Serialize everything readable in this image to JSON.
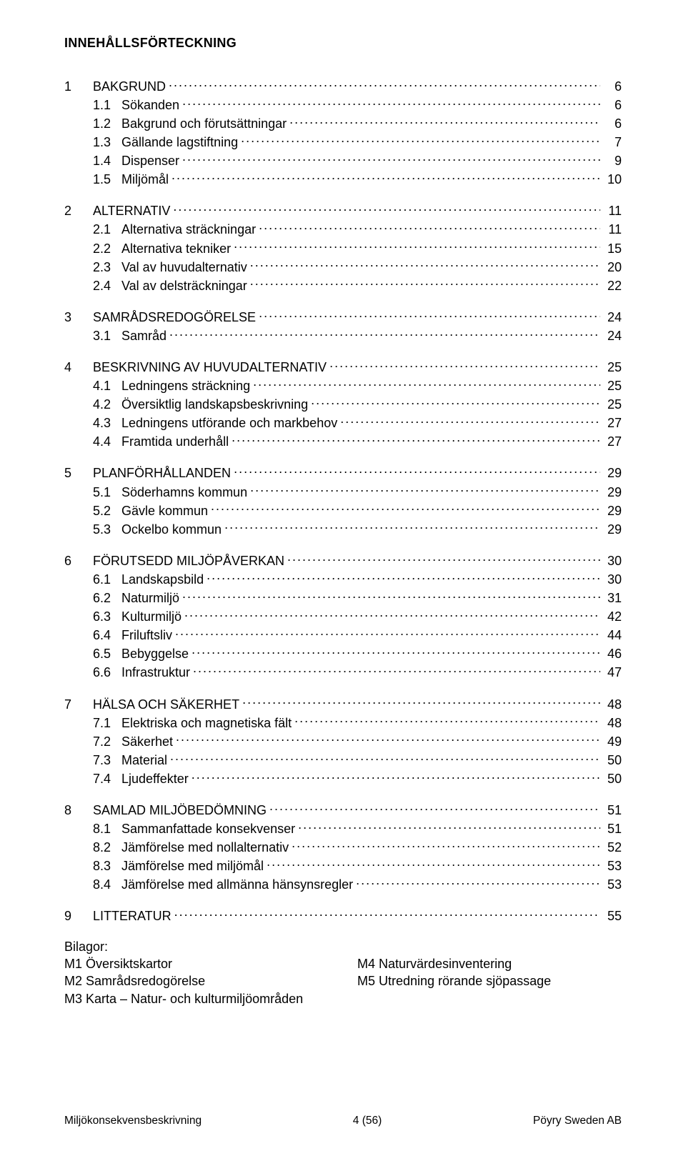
{
  "title": "INNEHÅLLSFÖRTECKNING",
  "toc": [
    {
      "num": "1",
      "label": "BAKGRUND",
      "page": "6",
      "level": 1,
      "children": [
        {
          "num": "1.1",
          "label": "Sökanden",
          "page": "6"
        },
        {
          "num": "1.2",
          "label": "Bakgrund och förutsättningar",
          "page": "6"
        },
        {
          "num": "1.3",
          "label": "Gällande lagstiftning",
          "page": "7"
        },
        {
          "num": "1.4",
          "label": "Dispenser",
          "page": "9"
        },
        {
          "num": "1.5",
          "label": "Miljömål",
          "page": "10"
        }
      ]
    },
    {
      "num": "2",
      "label": "ALTERNATIV",
      "page": "11",
      "level": 1,
      "children": [
        {
          "num": "2.1",
          "label": "Alternativa sträckningar",
          "page": "11"
        },
        {
          "num": "2.2",
          "label": "Alternativa tekniker",
          "page": "15"
        },
        {
          "num": "2.3",
          "label": "Val av huvudalternativ",
          "page": "20"
        },
        {
          "num": "2.4",
          "label": "Val av delsträckningar",
          "page": "22"
        }
      ]
    },
    {
      "num": "3",
      "label": "SAMRÅDSREDOGÖRELSE",
      "page": "24",
      "level": 1,
      "children": [
        {
          "num": "3.1",
          "label": "Samråd",
          "page": "24"
        }
      ]
    },
    {
      "num": "4",
      "label": "BESKRIVNING AV HUVUDALTERNATIV",
      "page": "25",
      "level": 1,
      "children": [
        {
          "num": "4.1",
          "label": "Ledningens sträckning",
          "page": "25"
        },
        {
          "num": "4.2",
          "label": "Översiktlig landskapsbeskrivning",
          "page": "25"
        },
        {
          "num": "4.3",
          "label": "Ledningens utförande och markbehov",
          "page": "27"
        },
        {
          "num": "4.4",
          "label": "Framtida underhåll",
          "page": "27"
        }
      ]
    },
    {
      "num": "5",
      "label": "PLANFÖRHÅLLANDEN",
      "page": "29",
      "level": 1,
      "children": [
        {
          "num": "5.1",
          "label": "Söderhamns kommun",
          "page": "29"
        },
        {
          "num": "5.2",
          "label": "Gävle kommun",
          "page": "29"
        },
        {
          "num": "5.3",
          "label": "Ockelbo kommun",
          "page": "29"
        }
      ]
    },
    {
      "num": "6",
      "label": "FÖRUTSEDD MILJÖPÅVERKAN",
      "page": "30",
      "level": 1,
      "children": [
        {
          "num": "6.1",
          "label": "Landskapsbild",
          "page": "30"
        },
        {
          "num": "6.2",
          "label": "Naturmiljö",
          "page": "31"
        },
        {
          "num": "6.3",
          "label": "Kulturmiljö",
          "page": "42"
        },
        {
          "num": "6.4",
          "label": "Friluftsliv",
          "page": "44"
        },
        {
          "num": "6.5",
          "label": "Bebyggelse",
          "page": "46"
        },
        {
          "num": "6.6",
          "label": "Infrastruktur",
          "page": "47"
        }
      ]
    },
    {
      "num": "7",
      "label": "HÄLSA OCH SÄKERHET",
      "page": "48",
      "level": 1,
      "children": [
        {
          "num": "7.1",
          "label": "Elektriska och magnetiska fält",
          "page": "48"
        },
        {
          "num": "7.2",
          "label": "Säkerhet",
          "page": "49"
        },
        {
          "num": "7.3",
          "label": "Material",
          "page": "50"
        },
        {
          "num": "7.4",
          "label": "Ljudeffekter",
          "page": "50"
        }
      ]
    },
    {
      "num": "8",
      "label": "SAMLAD MILJÖBEDÖMNING",
      "page": "51",
      "level": 1,
      "children": [
        {
          "num": "8.1",
          "label": "Sammanfattade konsekvenser",
          "page": "51"
        },
        {
          "num": "8.2",
          "label": "Jämförelse med nollalternativ",
          "page": "52"
        },
        {
          "num": "8.3",
          "label": "Jämförelse med miljömål",
          "page": "53"
        },
        {
          "num": "8.4",
          "label": "Jämförelse med allmänna hänsynsregler",
          "page": "53"
        }
      ]
    },
    {
      "num": "9",
      "label": "LITTERATUR",
      "page": "55",
      "level": 1,
      "children": []
    }
  ],
  "appendix_heading": "Bilagor:",
  "appendix_left": [
    "M1 Översiktskartor",
    "M2 Samrådsredogörelse",
    "M3 Karta – Natur- och kulturmiljöområden"
  ],
  "appendix_right": [
    "M4 Naturvärdesinventering",
    "M5 Utredning rörande sjöpassage"
  ],
  "footer": {
    "left": "Miljökonsekvensbeskrivning",
    "center": "4 (56)",
    "right": "Pöyry Sweden AB"
  }
}
